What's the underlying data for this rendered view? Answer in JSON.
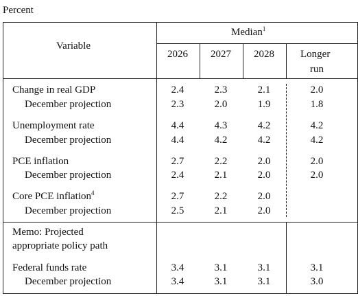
{
  "unit_label": "Percent",
  "header": {
    "variable": "Variable",
    "median": "Median",
    "median_note": "1",
    "years": [
      "2026",
      "2027",
      "2028"
    ],
    "longer_run_line1": "Longer",
    "longer_run_line2": "run"
  },
  "rows": [
    {
      "label": "Change in real GDP",
      "note": "",
      "values": [
        "2.4",
        "2.3",
        "2.1",
        "2.0"
      ],
      "proj_label": "December projection",
      "proj_values": [
        "2.3",
        "2.0",
        "1.9",
        "1.8"
      ]
    },
    {
      "label": "Unemployment rate",
      "note": "",
      "values": [
        "4.4",
        "4.3",
        "4.2",
        "4.2"
      ],
      "proj_label": "December projection",
      "proj_values": [
        "4.4",
        "4.2",
        "4.2",
        "4.2"
      ]
    },
    {
      "label": "PCE inflation",
      "note": "",
      "values": [
        "2.7",
        "2.2",
        "2.0",
        "2.0"
      ],
      "proj_label": "December projection",
      "proj_values": [
        "2.4",
        "2.1",
        "2.0",
        "2.0"
      ]
    },
    {
      "label": "Core PCE inflation",
      "note": "4",
      "values": [
        "2.7",
        "2.2",
        "2.0",
        ""
      ],
      "proj_label": "December projection",
      "proj_values": [
        "2.5",
        "2.1",
        "2.0",
        ""
      ]
    }
  ],
  "memo": {
    "line1": "Memo: Projected",
    "line2": "appropriate policy path"
  },
  "fed_funds": {
    "label": "Federal funds rate",
    "values": [
      "3.4",
      "3.1",
      "3.1",
      "3.1"
    ],
    "proj_label": "December projection",
    "proj_values": [
      "3.4",
      "3.1",
      "3.1",
      "3.0"
    ]
  }
}
